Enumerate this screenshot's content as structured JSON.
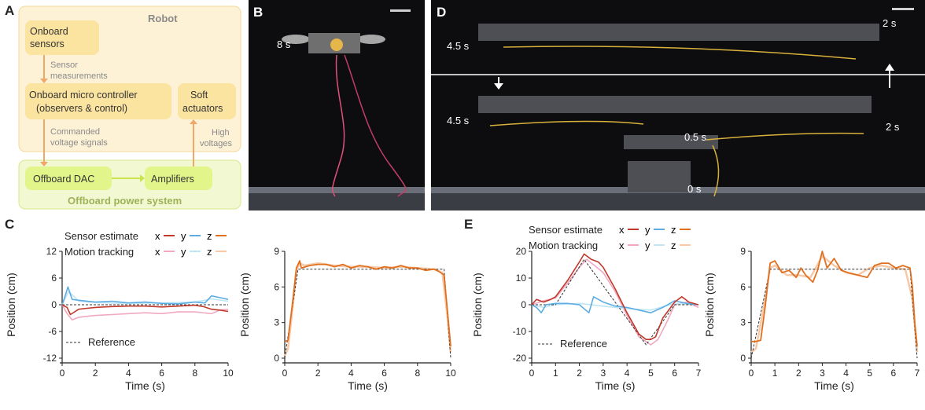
{
  "panels": {
    "a": "A",
    "b": "B",
    "c": "C",
    "d": "D",
    "e": "E"
  },
  "diagram": {
    "robot_title": "Robot",
    "onboard_sensors": [
      "Onboard",
      "sensors"
    ],
    "sensor_measurements": [
      "Sensor",
      "measurements"
    ],
    "controller": [
      "Onboard micro controller",
      "(observers & control)"
    ],
    "commanded": [
      "Commanded",
      "voltage signals"
    ],
    "soft_actuators": [
      "Soft",
      "actuators"
    ],
    "high_voltages": [
      "High",
      "voltages"
    ],
    "offboard_dac": "Offboard DAC",
    "amplifiers": "Amplifiers",
    "power_system": "Offboard power system"
  },
  "photo_b": {
    "time": "8 s"
  },
  "photo_d": {
    "t_top_left": "4.5 s",
    "t_top_right": "2 s",
    "t_mid_left": "4.5 s",
    "t_mid_right": "2 s",
    "t_half": "0.5 s",
    "t_zero": "0 s"
  },
  "colors": {
    "x_est": "#c0392b",
    "y_est": "#5dade2",
    "z_est": "#e07020",
    "x_mt": "#f2a8c0",
    "y_mt": "#bfe6f5",
    "z_mt": "#f7c9a6"
  },
  "legend": {
    "sensor_label": "Sensor estimate",
    "mt_label": "Motion tracking",
    "x": "x",
    "y": "y",
    "z": "z",
    "reference": "Reference"
  },
  "chart_data": [
    {
      "type": "line",
      "id": "c_xy",
      "xlabel": "Time (s)",
      "ylabel": "Position (cm)",
      "xlim": [
        0,
        10
      ],
      "ylim": [
        -12,
        12
      ],
      "xticks": [
        "0",
        "2",
        "4",
        "6",
        "8",
        "10"
      ],
      "yticks": [
        "12",
        "6",
        "0",
        "-6",
        "-12"
      ],
      "series": [
        {
          "name": "x sensor estimate",
          "x": [
            0,
            0.3,
            0.5,
            1,
            1.5,
            2,
            3,
            4,
            5,
            6,
            7,
            8,
            8.5,
            9,
            9.5,
            10
          ],
          "y": [
            0,
            -0.6,
            -2.2,
            -1.0,
            -0.8,
            -0.6,
            -0.4,
            -0.3,
            -0.3,
            -0.5,
            -0.3,
            -0.1,
            -0.4,
            -1.0,
            -1.2,
            -1.5
          ]
        },
        {
          "name": "y sensor estimate",
          "x": [
            0,
            0.2,
            0.35,
            0.6,
            1,
            2,
            3,
            4,
            5,
            6,
            7,
            8,
            8.6,
            9,
            9.5,
            10
          ],
          "y": [
            0,
            2.2,
            4.0,
            1.2,
            1.0,
            0.6,
            0.8,
            0.4,
            0.6,
            0.3,
            0.2,
            0.6,
            0.4,
            2.0,
            1.6,
            1.2
          ]
        },
        {
          "name": "z sensor estimate",
          "x": [],
          "y": []
        },
        {
          "name": "x motion tracking",
          "x": [
            0,
            0.3,
            0.6,
            1,
            2,
            3,
            4,
            5,
            6,
            7,
            8,
            9,
            9.5,
            10
          ],
          "y": [
            0,
            -2.0,
            -3.4,
            -2.8,
            -2.4,
            -2.2,
            -2.0,
            -1.8,
            -2.0,
            -1.6,
            -1.6,
            -2.0,
            -1.2,
            -1.0
          ]
        },
        {
          "name": "y motion tracking",
          "x": [
            0,
            0.4,
            1,
            2,
            4,
            6,
            8,
            9,
            10
          ],
          "y": [
            0,
            3.0,
            0.8,
            0.5,
            0.3,
            0.4,
            0.6,
            1.3,
            0.8
          ]
        },
        {
          "name": "z motion tracking",
          "x": [],
          "y": []
        },
        {
          "name": "Reference",
          "x": [
            0,
            10
          ],
          "y": [
            0,
            0
          ]
        }
      ]
    },
    {
      "type": "line",
      "id": "c_z",
      "xlabel": "Time (s)",
      "ylabel": "Position (cm)",
      "xlim": [
        0,
        10
      ],
      "ylim": [
        0,
        9
      ],
      "xticks": [
        "0",
        "2",
        "4",
        "6",
        "8",
        "10"
      ],
      "yticks": [
        "9",
        "6",
        "3",
        "0"
      ],
      "series": [
        {
          "name": "z sensor estimate",
          "x": [
            0,
            0.2,
            0.5,
            0.7,
            0.9,
            1,
            1.5,
            2,
            2.5,
            3,
            3.5,
            4,
            4.5,
            5,
            5.5,
            6,
            6.5,
            7,
            7.5,
            8,
            8.5,
            9,
            9.3,
            9.6,
            9.8,
            10
          ],
          "y": [
            1.4,
            1.5,
            5.0,
            7.6,
            8.2,
            7.6,
            7.8,
            7.9,
            7.9,
            7.7,
            7.9,
            7.6,
            7.8,
            7.7,
            7.5,
            7.7,
            7.6,
            7.8,
            7.6,
            7.6,
            7.4,
            7.5,
            7.3,
            7.0,
            4.0,
            1.0
          ]
        },
        {
          "name": "z motion tracking",
          "x": [
            0,
            0.2,
            0.5,
            0.7,
            0.9,
            1.2,
            2,
            3,
            4,
            5,
            6,
            7,
            8,
            9,
            9.5,
            9.8,
            10
          ],
          "y": [
            0.2,
            0.8,
            4.5,
            7.4,
            8.0,
            7.8,
            8.0,
            7.8,
            7.7,
            7.7,
            7.6,
            7.7,
            7.6,
            7.5,
            7.2,
            3.5,
            0.5
          ]
        },
        {
          "name": "Reference",
          "x": [
            0,
            0.8,
            9.6,
            10
          ],
          "y": [
            0,
            7.5,
            7.5,
            0
          ]
        }
      ]
    },
    {
      "type": "line",
      "id": "e_xy",
      "xlabel": "Time (s)",
      "ylabel": "Position (cm)",
      "xlim": [
        0,
        7
      ],
      "ylim": [
        -20,
        20
      ],
      "xticks": [
        "0",
        "1",
        "2",
        "3",
        "4",
        "5",
        "6",
        "7"
      ],
      "yticks": [
        "20",
        "10",
        "0",
        "-10",
        "-20"
      ],
      "series": [
        {
          "name": "x sensor estimate",
          "x": [
            0,
            0.2,
            0.5,
            0.8,
            1,
            1.5,
            2,
            2.2,
            2.5,
            2.8,
            3,
            3.5,
            4,
            4.5,
            4.8,
            5,
            5.2,
            5.5,
            6,
            6.3,
            6.6,
            7
          ],
          "y": [
            0,
            2,
            1,
            2,
            3,
            9,
            16,
            19,
            17,
            16,
            14,
            6,
            -3,
            -11,
            -13,
            -13,
            -12,
            -5,
            1,
            3,
            1,
            0
          ]
        },
        {
          "name": "y sensor estimate",
          "x": [
            0,
            0.2,
            0.4,
            0.6,
            1,
            1.5,
            2,
            2.4,
            2.6,
            3,
            3.5,
            4,
            4.5,
            5,
            5.5,
            6,
            6.5,
            7
          ],
          "y": [
            0,
            -1,
            -3,
            0,
            0.5,
            0.5,
            0,
            -3,
            3,
            1,
            -0.5,
            -1,
            -2,
            -3,
            -1,
            1.5,
            0.5,
            0
          ]
        },
        {
          "name": "z sensor estimate",
          "x": [],
          "y": []
        },
        {
          "name": "x motion tracking",
          "x": [
            0,
            0.5,
            1,
            1.5,
            2,
            2.3,
            2.6,
            3,
            3.5,
            4,
            4.5,
            5,
            5.3,
            5.7,
            6,
            6.5,
            7
          ],
          "y": [
            0,
            1.5,
            2.5,
            8,
            14,
            17,
            15,
            12,
            5,
            -4,
            -12,
            -15,
            -13,
            -6,
            0,
            1,
            -1
          ]
        },
        {
          "name": "y motion tracking",
          "x": [
            0,
            0.5,
            1,
            2,
            3,
            4,
            5,
            6,
            7
          ],
          "y": [
            0,
            -1,
            0,
            0.5,
            -0.5,
            -1.5,
            -2,
            0.5,
            0
          ]
        },
        {
          "name": "z motion tracking",
          "x": [],
          "y": []
        },
        {
          "name": "Reference",
          "x": [
            0,
            1,
            2.2,
            4.8,
            6,
            7
          ],
          "y": [
            0,
            0,
            17,
            -15,
            0,
            0
          ]
        }
      ]
    },
    {
      "type": "line",
      "id": "e_z",
      "xlabel": "Time (s)",
      "ylabel": "Position (cm)",
      "xlim": [
        0,
        7
      ],
      "ylim": [
        0,
        9
      ],
      "xticks": [
        "0",
        "1",
        "2",
        "3",
        "4",
        "5",
        "6",
        "7"
      ],
      "yticks": [
        "9",
        "6",
        "3",
        "0"
      ],
      "series": [
        {
          "name": "z sensor estimate",
          "x": [
            0,
            0.2,
            0.4,
            0.6,
            0.8,
            1,
            1.3,
            1.6,
            1.9,
            2.1,
            2.3,
            2.6,
            2.8,
            3,
            3.2,
            3.5,
            3.8,
            4.1,
            4.5,
            4.9,
            5.2,
            5.5,
            5.8,
            6.1,
            6.4,
            6.7,
            6.8,
            6.9,
            7
          ],
          "y": [
            1.4,
            1.4,
            1.5,
            4.5,
            8.0,
            8.2,
            7.2,
            7.4,
            6.8,
            7.6,
            7.0,
            6.4,
            7.4,
            9.0,
            7.6,
            8.4,
            7.4,
            7.2,
            7.0,
            6.8,
            7.8,
            8.0,
            8.0,
            7.6,
            7.8,
            7.6,
            6.0,
            3.0,
            1.0
          ]
        },
        {
          "name": "z motion tracking",
          "x": [
            0,
            0.2,
            0.5,
            0.8,
            1,
            1.5,
            2,
            2.5,
            3,
            3.5,
            4,
            4.5,
            5,
            5.5,
            6,
            6.5,
            6.8,
            7
          ],
          "y": [
            0.5,
            0.8,
            4.0,
            7.6,
            7.8,
            7.0,
            7.0,
            6.8,
            8.6,
            7.8,
            7.2,
            7.0,
            7.6,
            7.8,
            7.6,
            7.5,
            5.0,
            0.5
          ]
        },
        {
          "name": "Reference",
          "x": [
            0,
            0.8,
            6.7,
            7
          ],
          "y": [
            0,
            7.5,
            7.5,
            0
          ]
        }
      ]
    }
  ]
}
